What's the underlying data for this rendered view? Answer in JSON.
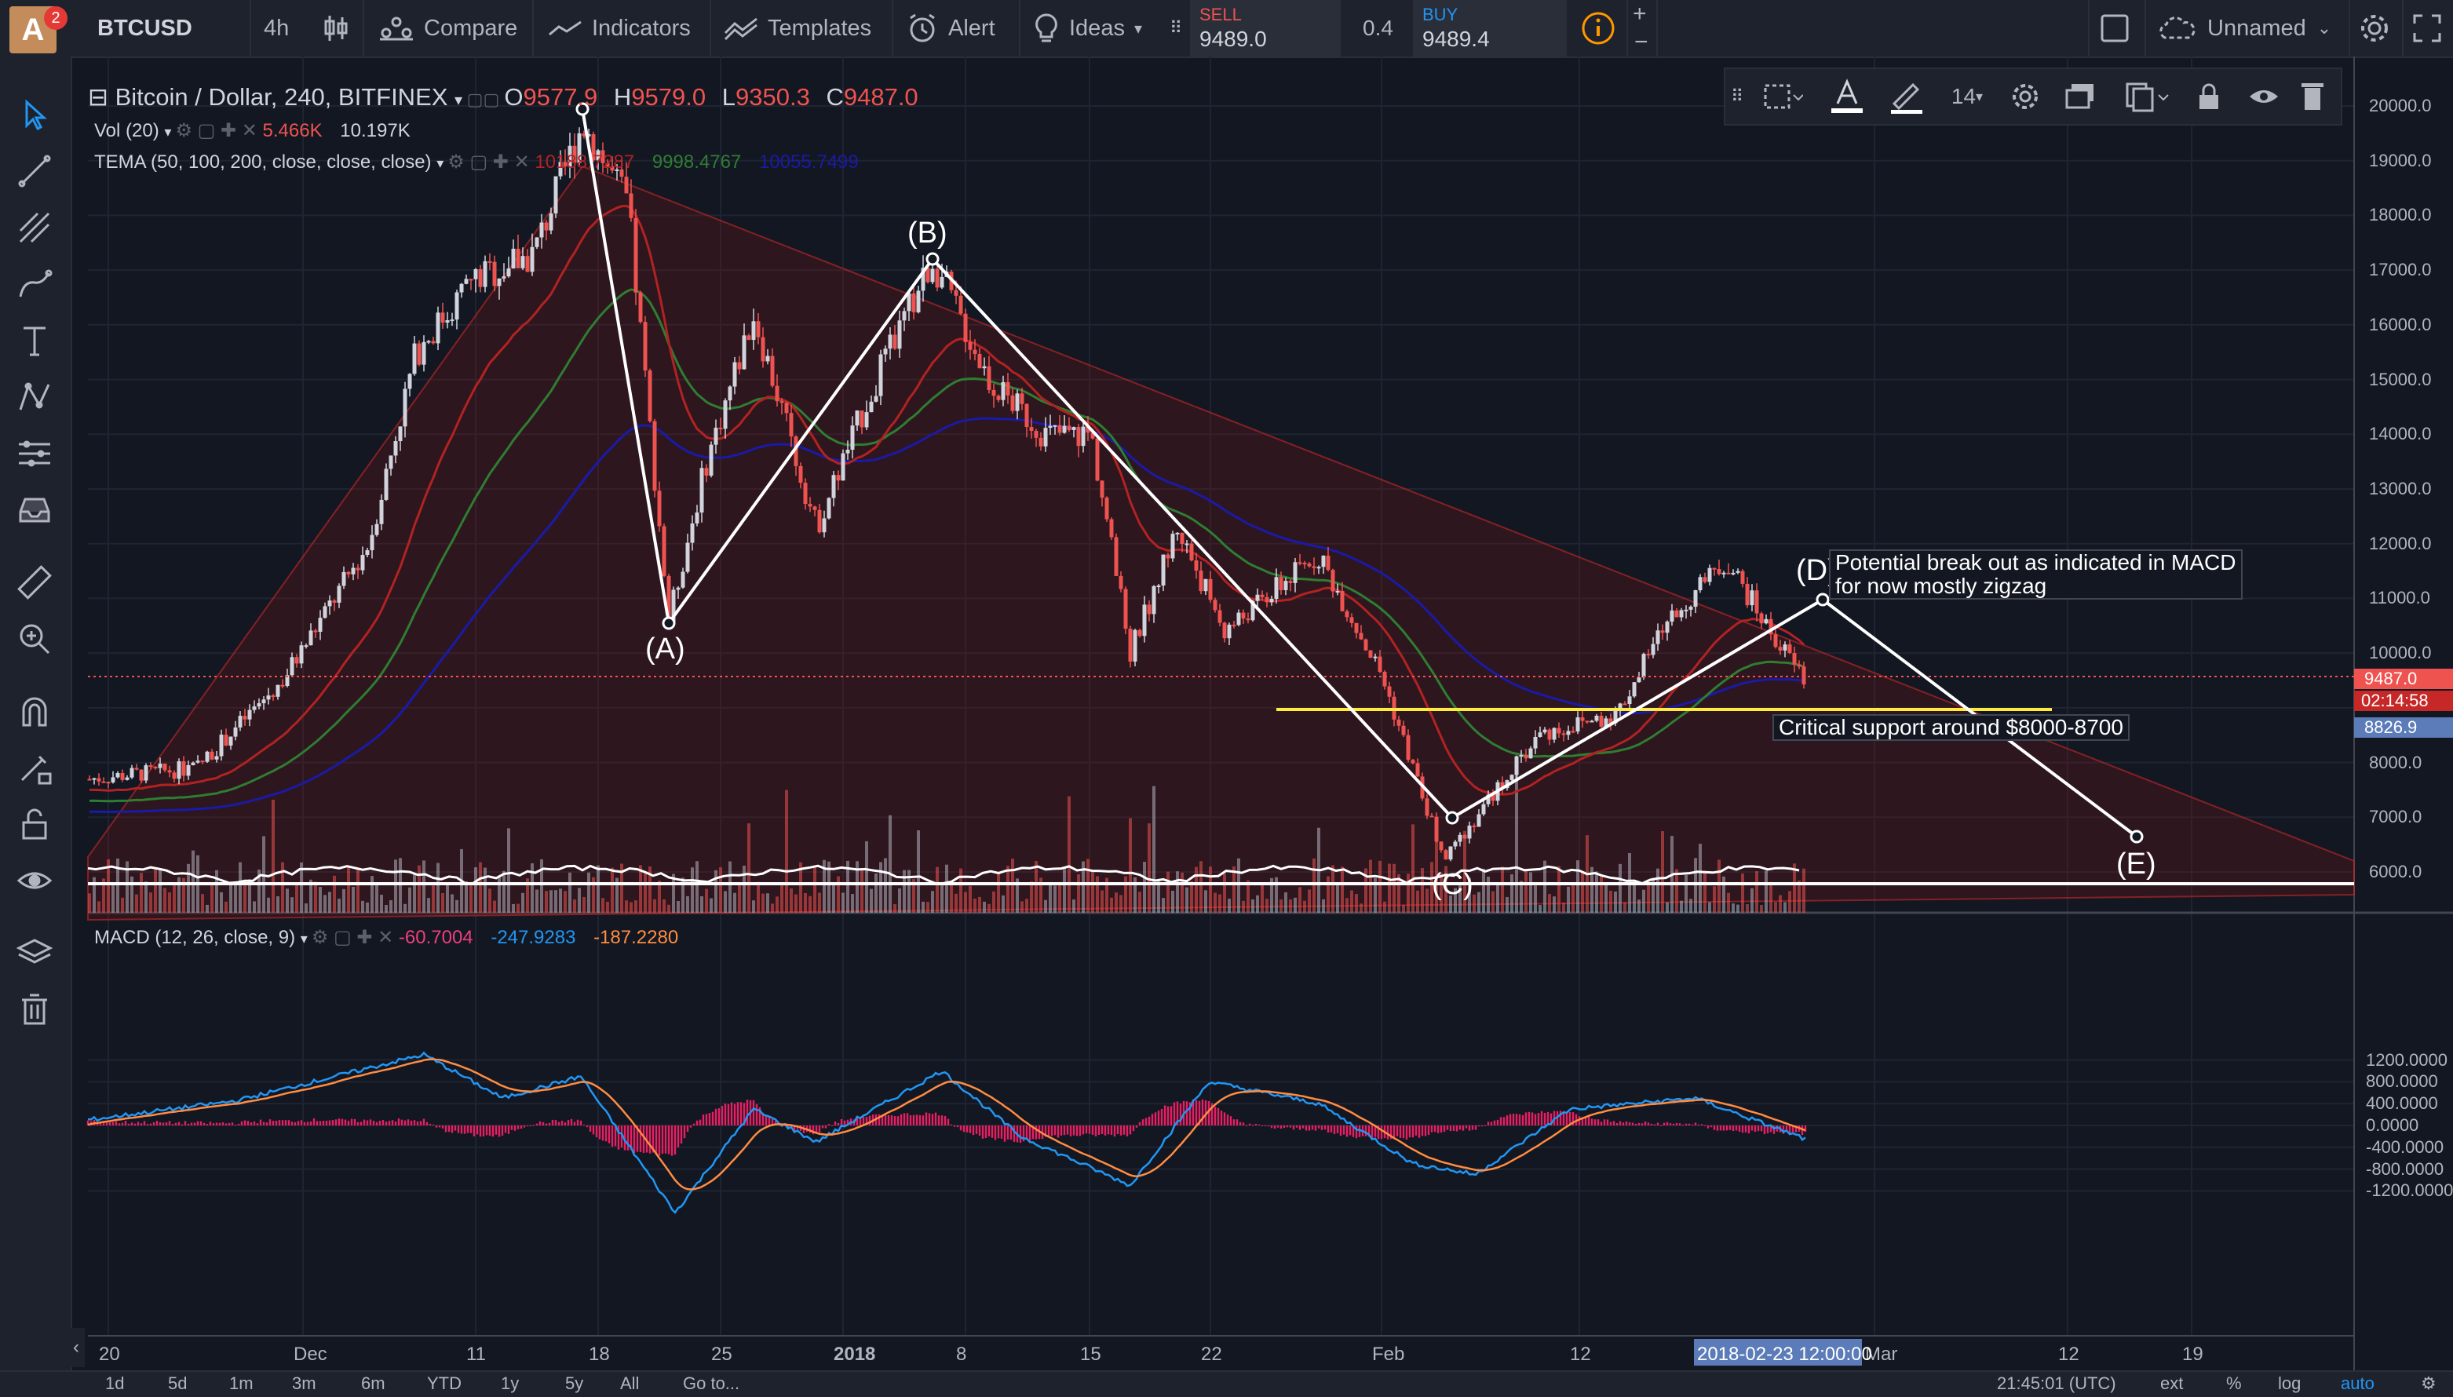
{
  "topbar": {
    "avatar_letter": "A",
    "notification_count": "2",
    "symbol": "BTCUSD",
    "interval": "4h",
    "compare": "Compare",
    "indicators": "Indicators",
    "templates": "Templates",
    "alert": "Alert",
    "ideas": "Ideas",
    "sell_label": "SELL",
    "sell_price": "9489.0",
    "spread": "0.4",
    "buy_label": "BUY",
    "buy_price": "9489.4",
    "layout_name": "Unnamed"
  },
  "legend": {
    "title": "Bitcoin / Dollar, 240, BITFINEX",
    "open_label": "O",
    "open": "9577.9",
    "high_label": "H",
    "high": "9579.0",
    "low_label": "L",
    "low": "9350.3",
    "close_label": "C",
    "close": "9487.0",
    "vol_label": "Vol (20)",
    "vol_value1": "5.466K",
    "vol_value2": "10.197K",
    "tema_label": "TEMA (50, 100, 200, close, close, close)",
    "tema_v1": "10188.7287",
    "tema_v2": "9998.4767",
    "tema_v3": "10055.7499",
    "macd_label": "MACD (12, 26, close, 9)",
    "macd_v1": "-60.7004",
    "macd_v2": "-247.9283",
    "macd_v3": "-187.2280"
  },
  "price_axis": [
    "20000.0",
    "19000.0",
    "18000.0",
    "17000.0",
    "16000.0",
    "15000.0",
    "14000.0",
    "13000.0",
    "12000.0",
    "11000.0",
    "10000.0",
    "8000.0",
    "7000.0",
    "6000.0"
  ],
  "price_tags": {
    "last": "9487.0",
    "countdown": "02:14:58",
    "cursor": "8826.9"
  },
  "macd_axis": [
    "1200.0000",
    "800.0000",
    "400.0000",
    "0.0000",
    "-400.0000",
    "-800.0000",
    "-1200.0000"
  ],
  "time_axis": [
    "20",
    "Dec",
    "11",
    "18",
    "25",
    "2018",
    "8",
    "15",
    "22",
    "Feb",
    "12",
    "Mar",
    "12",
    "19"
  ],
  "cursor_time": "2018-02-23 12:00:00",
  "annotations": {
    "wave_a": "(A)",
    "wave_b": "(B)",
    "wave_c": "(C)",
    "wave_d": "(D)",
    "wave_e": "(E)",
    "note_breakout_line1": "Potential break out as indicated in MACD",
    "note_breakout_line2": "for now mostly zigzag",
    "note_support": "Critical support around $8000-8700"
  },
  "drawing_toolbar": {
    "font_size": "14"
  },
  "bottombar": {
    "ranges": [
      "1d",
      "5d",
      "1m",
      "3m",
      "6m",
      "YTD",
      "1y",
      "5y",
      "All"
    ],
    "goto": "Go to...",
    "clock": "21:45:01 (UTC)",
    "ext": "ext",
    "percent": "%",
    "log": "log",
    "auto": "auto"
  },
  "colors": {
    "up": "#d1d4dc",
    "down": "#ef5350",
    "tema1": "#b22222",
    "tema2": "#2e7d32",
    "tema3": "#1a1aa8",
    "support": "#ffeb3b",
    "accent": "#2196f3"
  }
}
